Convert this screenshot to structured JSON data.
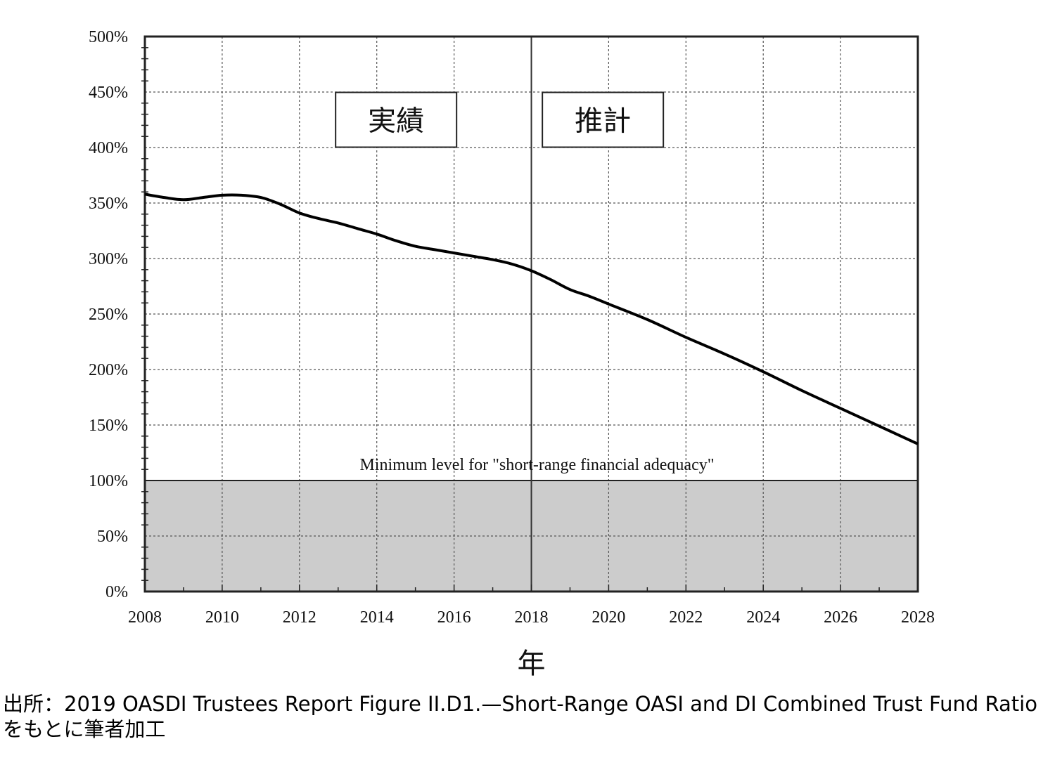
{
  "chart_data": {
    "type": "line",
    "xlabel": "年",
    "ylabel": "",
    "xlim": [
      2008,
      2028
    ],
    "ylim": [
      0,
      500
    ],
    "x_ticks": [
      2008,
      2010,
      2012,
      2014,
      2016,
      2018,
      2020,
      2022,
      2024,
      2026,
      2028
    ],
    "x_tick_labels": [
      "2008",
      "2010",
      "2012",
      "2014",
      "2016",
      "2018",
      "2020",
      "2022",
      "2024",
      "2026",
      "2028"
    ],
    "y_ticks": [
      0,
      50,
      100,
      150,
      200,
      250,
      300,
      350,
      400,
      450,
      500
    ],
    "y_tick_labels": [
      "0%",
      "50%",
      "100%",
      "150%",
      "200%",
      "250%",
      "300%",
      "350%",
      "400%",
      "450%",
      "500%"
    ],
    "grid": true,
    "series": [
      {
        "x": [
          2008,
          2008.5,
          2009,
          2009.5,
          2010,
          2010.5,
          2011,
          2011.5,
          2012,
          2012.5,
          2013,
          2013.5,
          2014,
          2014.5,
          2015,
          2015.5,
          2016,
          2016.5,
          2017,
          2017.5,
          2018,
          2018.5,
          2019,
          2019.5,
          2020,
          2021,
          2022,
          2023,
          2024,
          2025,
          2026,
          2027,
          2028
        ],
        "values": [
          358,
          355,
          353,
          355,
          357,
          357,
          355,
          349,
          341,
          336,
          332,
          327,
          322,
          316,
          311,
          308,
          305,
          302,
          299,
          295,
          289,
          281,
          272,
          266,
          259,
          245,
          229,
          214,
          198,
          181,
          165,
          149,
          133
        ],
        "color": "#000000"
      }
    ],
    "threshold": {
      "value": 100,
      "label": "Minimum level for \"short-range financial adequacy\"",
      "fill": "#cccccc"
    },
    "divider_x": 2018,
    "period_labels": [
      {
        "text": "実績",
        "x_center": 2014.5,
        "y_center": 425
      },
      {
        "text": "推計",
        "x_center": 2019.85,
        "y_center": 425
      }
    ]
  },
  "source_note": "出所：2019 OASDI Trustees Report Figure II.D1.—Short-Range OASI and DI Combined Trust Fund Ratioをもとに筆者加工"
}
